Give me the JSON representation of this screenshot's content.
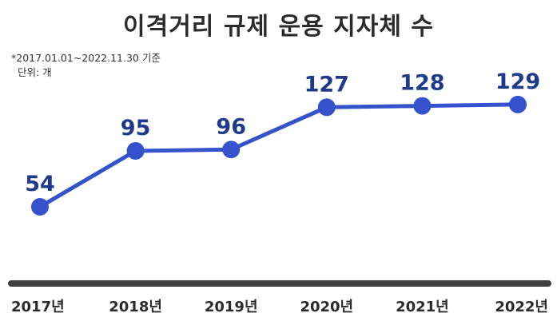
{
  "header": {
    "title": "이격거리 규제 운용 지자체 수",
    "period_note": "*2017.01.01~2022.11.30 기준",
    "unit_note": "단위: 개"
  },
  "colors": {
    "line": "#3552cc",
    "marker": "#3552cc",
    "value_label": "#1f3a8c",
    "axis": "#404040",
    "title": "#2b2b2b"
  },
  "chart_data": {
    "type": "line",
    "title": "이격거리 규제 운용 지자체 수",
    "categories": [
      "2017년",
      "2018년",
      "2019년",
      "2020년",
      "2021년",
      "2022년"
    ],
    "series": [
      {
        "values": [
          54,
          95,
          96,
          127,
          128,
          129
        ]
      }
    ],
    "ylabel": "단위: 개",
    "ylim": [
      30,
      150
    ],
    "grid": false,
    "legend": "none"
  }
}
